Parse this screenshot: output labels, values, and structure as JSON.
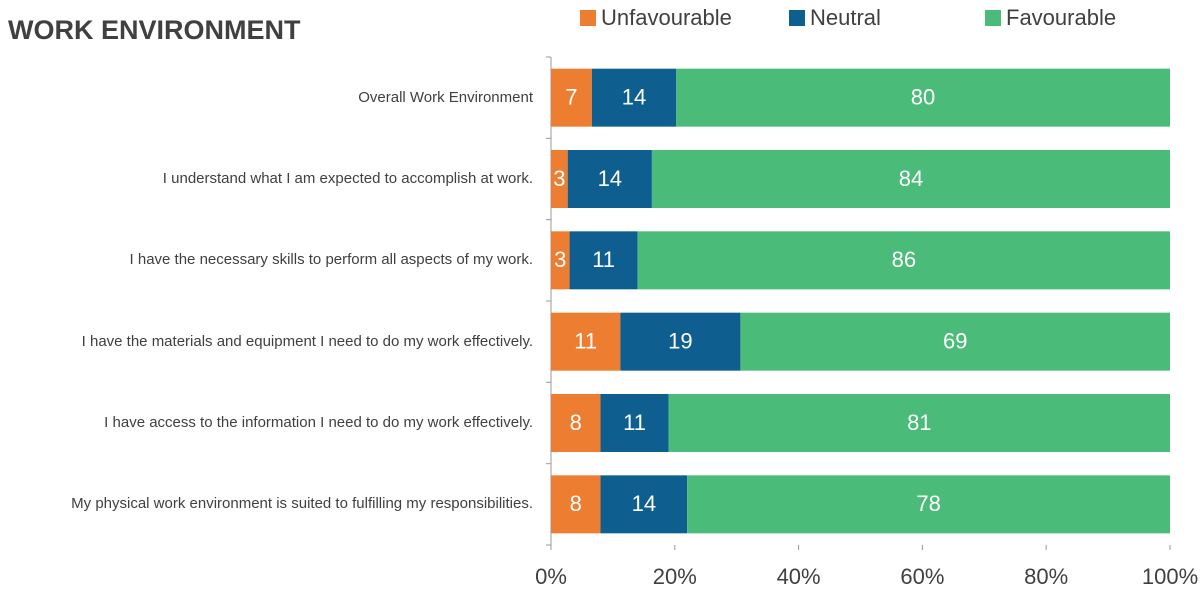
{
  "chart_data": {
    "type": "stacked_barh",
    "title": "WORK ENVIRONMENT",
    "categories": [
      "Overall Work Environment",
      "I understand what I am expected to accomplish at work.",
      "I have the necessary skills to perform all aspects of my work.",
      "I have the materials and equipment I need to do my work effectively.",
      "I have access to the information I need to do my work effectively.",
      "My physical work environment is suited to fulfilling my responsibilities."
    ],
    "series": [
      {
        "name": "Unfavourable",
        "color": "#ed7d31",
        "values": [
          6.6,
          2.7,
          3,
          11.2,
          8,
          8
        ],
        "value_labels": [
          "7",
          "3",
          "3",
          "11",
          "8",
          "8"
        ]
      },
      {
        "name": "Neutral",
        "color": "#0e5e8f",
        "values": [
          13.6,
          13.6,
          11,
          19.4,
          11,
          14
        ],
        "value_labels": [
          "14",
          "14",
          "11",
          "19",
          "11",
          "14"
        ]
      },
      {
        "name": "Favourable",
        "color": "#4bbb79",
        "values": [
          79.8,
          83.7,
          86,
          69.4,
          81,
          78
        ],
        "value_labels": [
          "80",
          "84",
          "86",
          "69",
          "81",
          "78"
        ]
      }
    ],
    "xlim": [
      0,
      100
    ],
    "xticks": [
      {
        "value": 0,
        "label": "0%"
      },
      {
        "value": 20,
        "label": "20%"
      },
      {
        "value": 40,
        "label": "40%"
      },
      {
        "value": 60,
        "label": "60%"
      },
      {
        "value": 80,
        "label": "80%"
      },
      {
        "value": 100,
        "label": "100%"
      }
    ],
    "legend": "top"
  }
}
